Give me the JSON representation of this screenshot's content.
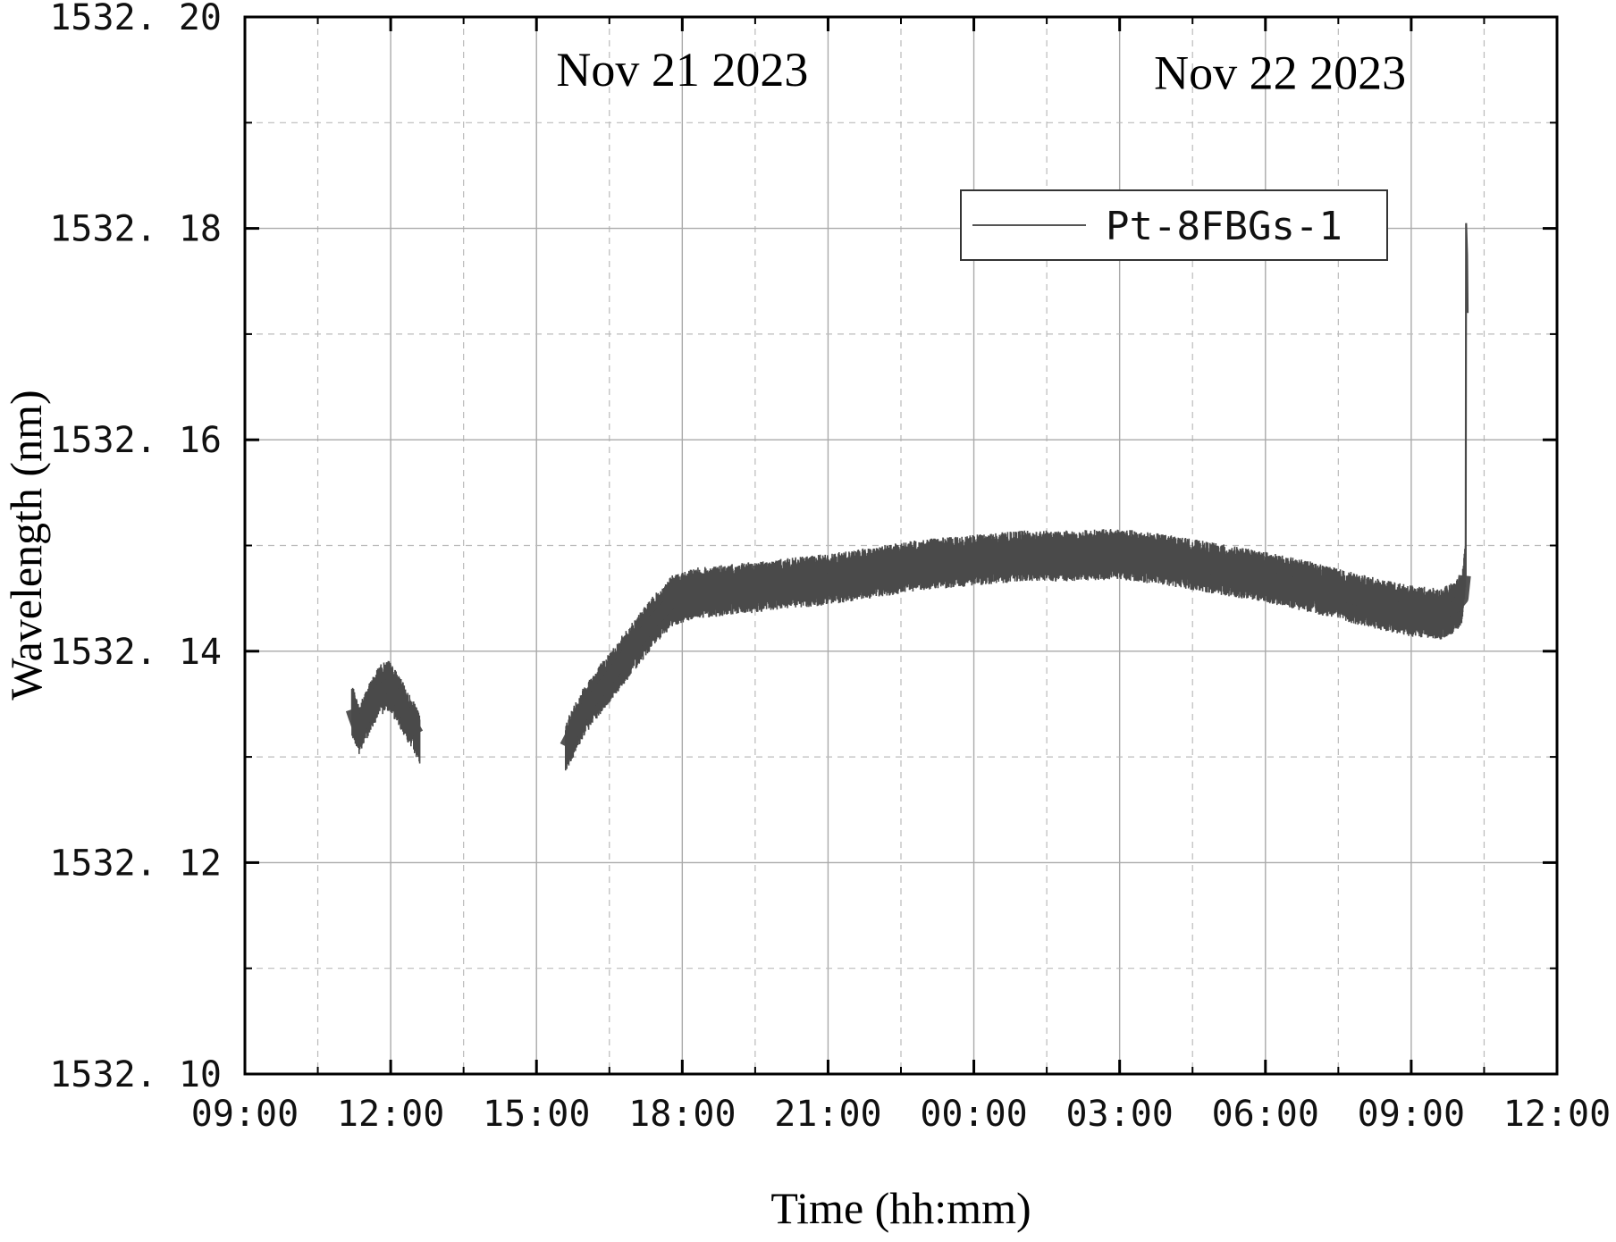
{
  "chart_data": {
    "type": "line",
    "title": "",
    "xlabel": "Time (hh:mm)",
    "ylabel": "Wavelength (nm)",
    "x_unit": "hours since Nov 21 2023 00:00",
    "xlim": [
      9,
      36
    ],
    "ylim": [
      1532.1,
      1532.2
    ],
    "x_ticks": [
      9,
      12,
      15,
      18,
      21,
      24,
      27,
      30,
      33,
      36
    ],
    "x_tick_labels": [
      "09:00",
      "12:00",
      "15:00",
      "18:00",
      "21:00",
      "00:00",
      "03:00",
      "06:00",
      "09:00",
      "12:00"
    ],
    "y_ticks": [
      1532.1,
      1532.12,
      1532.14,
      1532.16,
      1532.18,
      1532.2
    ],
    "y_tick_labels": [
      "1532. 10",
      "1532. 12",
      "1532. 14",
      "1532. 16",
      "1532. 18",
      "1532. 20"
    ],
    "grid": true,
    "legend_position": "top-right",
    "annotations": [
      {
        "text": "Nov 21 2023",
        "x": 18.0,
        "y": 1532.1935
      },
      {
        "text": "Nov 22 2023",
        "x": 30.3,
        "y": 1532.1932
      }
    ],
    "band_noise_nm": 0.0022,
    "series": [
      {
        "name": "Pt-8FBGs-1",
        "color": "#4a4a4a",
        "segments": [
          [
            [
              11.2,
              1532.1345
            ],
            [
              11.35,
              1532.1325
            ],
            [
              11.55,
              1532.1345
            ],
            [
              11.75,
              1532.1362
            ],
            [
              11.95,
              1532.1368
            ],
            [
              12.15,
              1532.1355
            ],
            [
              12.35,
              1532.1338
            ],
            [
              12.55,
              1532.1322
            ],
            [
              12.6,
              1532.1315
            ]
          ],
          [
            [
              15.6,
              1532.131
            ],
            [
              16.0,
              1532.1345
            ],
            [
              16.5,
              1532.1375
            ],
            [
              17.0,
              1532.1405
            ],
            [
              17.4,
              1532.1428
            ],
            [
              17.8,
              1532.1448
            ],
            [
              18.3,
              1532.1455
            ],
            [
              19.0,
              1532.1458
            ],
            [
              20.0,
              1532.1463
            ],
            [
              21.0,
              1532.1468
            ],
            [
              22.0,
              1532.1475
            ],
            [
              23.0,
              1532.1482
            ],
            [
              24.0,
              1532.1486
            ],
            [
              25.0,
              1532.149
            ],
            [
              26.0,
              1532.149
            ],
            [
              27.0,
              1532.1492
            ],
            [
              28.0,
              1532.1486
            ],
            [
              29.0,
              1532.1478
            ],
            [
              30.0,
              1532.147
            ],
            [
              31.0,
              1532.146
            ],
            [
              32.0,
              1532.1448
            ],
            [
              33.0,
              1532.1438
            ],
            [
              33.6,
              1532.1435
            ],
            [
              33.9,
              1532.1442
            ],
            [
              34.05,
              1532.145
            ],
            [
              34.12,
              1532.148
            ]
          ]
        ],
        "spike": [
          [
            34.12,
            1532.147
          ],
          [
            34.13,
            1532.1805
          ],
          [
            34.15,
            1532.1775
          ],
          [
            34.16,
            1532.172
          ]
        ]
      }
    ]
  }
}
